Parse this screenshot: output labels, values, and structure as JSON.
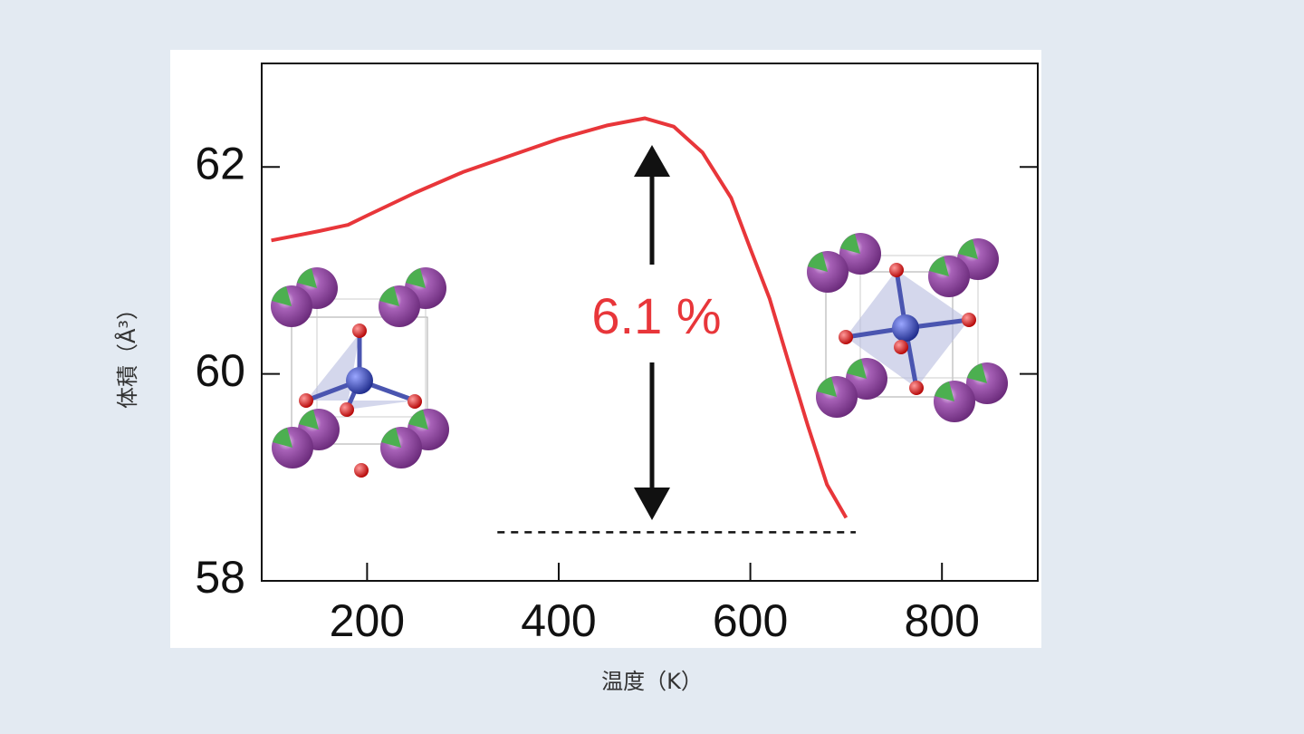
{
  "chart_data": {
    "type": "line",
    "xlabel": "温度（K）",
    "ylabel": "体積（Å³）",
    "annotation": "6.1 %",
    "color": "#e8363a",
    "x": [
      100,
      150,
      180,
      200,
      250,
      300,
      350,
      400,
      450,
      490,
      520,
      550,
      580,
      600,
      620,
      640,
      660,
      680,
      700
    ],
    "values": [
      61.29,
      61.38,
      61.44,
      61.53,
      61.75,
      61.95,
      62.11,
      62.27,
      62.4,
      62.47,
      62.39,
      62.14,
      61.7,
      61.21,
      60.73,
      60.11,
      59.5,
      58.93,
      58.61
    ],
    "reference": {
      "y": 58.47,
      "x": [
        336,
        710
      ]
    },
    "xlim": [
      90,
      900
    ],
    "ylim": [
      58,
      63
    ],
    "xticks": [
      200,
      400,
      600,
      800
    ],
    "yticks": [
      58,
      60,
      62
    ]
  }
}
